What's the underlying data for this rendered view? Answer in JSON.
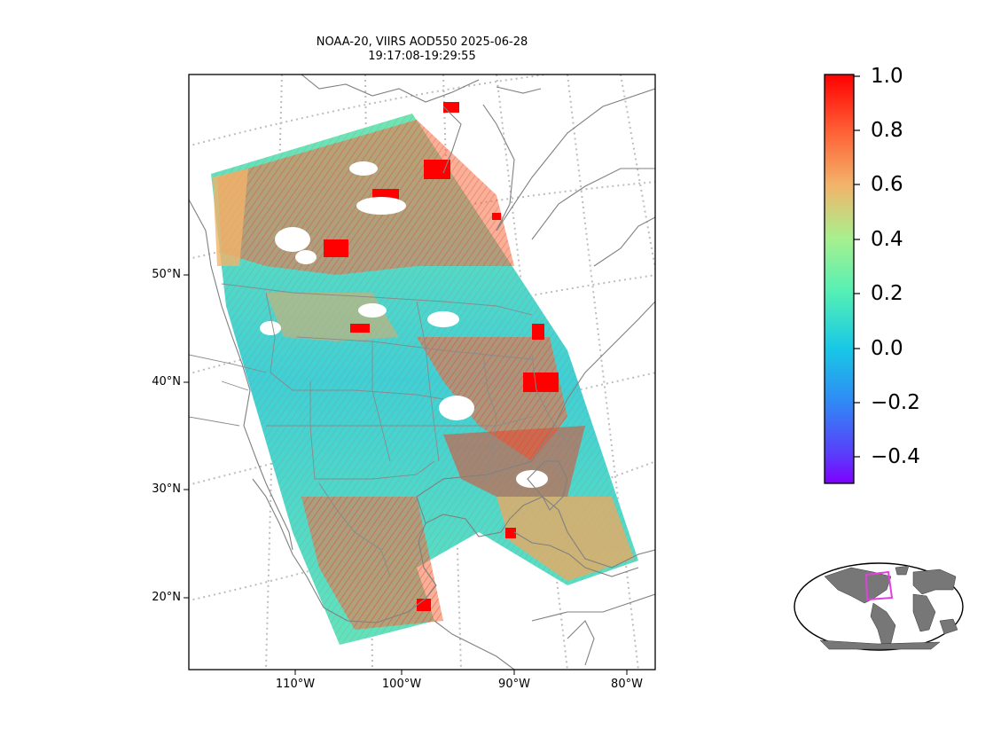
{
  "title": {
    "line1": "NOAA-20, VIIRS AOD550 2025-06-28",
    "line2": "19:17:08-19:29:55"
  },
  "map": {
    "lat_labels": [
      "50°N",
      "40°N",
      "30°N",
      "20°N"
    ],
    "lon_labels": [
      "110°W",
      "100°W",
      "90°W",
      "80°W"
    ],
    "projection": "conic (continental North America)",
    "gridlines": true
  },
  "colorbar": {
    "colormap": "rainbow",
    "range": [
      -0.5,
      1.0
    ],
    "ticks": [
      "1.0",
      "0.8",
      "0.6",
      "0.4",
      "0.2",
      "0.0",
      "−0.2",
      "−0.4"
    ],
    "colors": [
      "#ff0000",
      "#f3a65c",
      "#96f59a",
      "#3fe6c8",
      "#00b3f0",
      "#3f62f5",
      "#7f00ff"
    ]
  },
  "inset": {
    "description_icon": "globe-locator-icon",
    "highlight_color": "#e040e0",
    "land_color": "#777777"
  }
}
